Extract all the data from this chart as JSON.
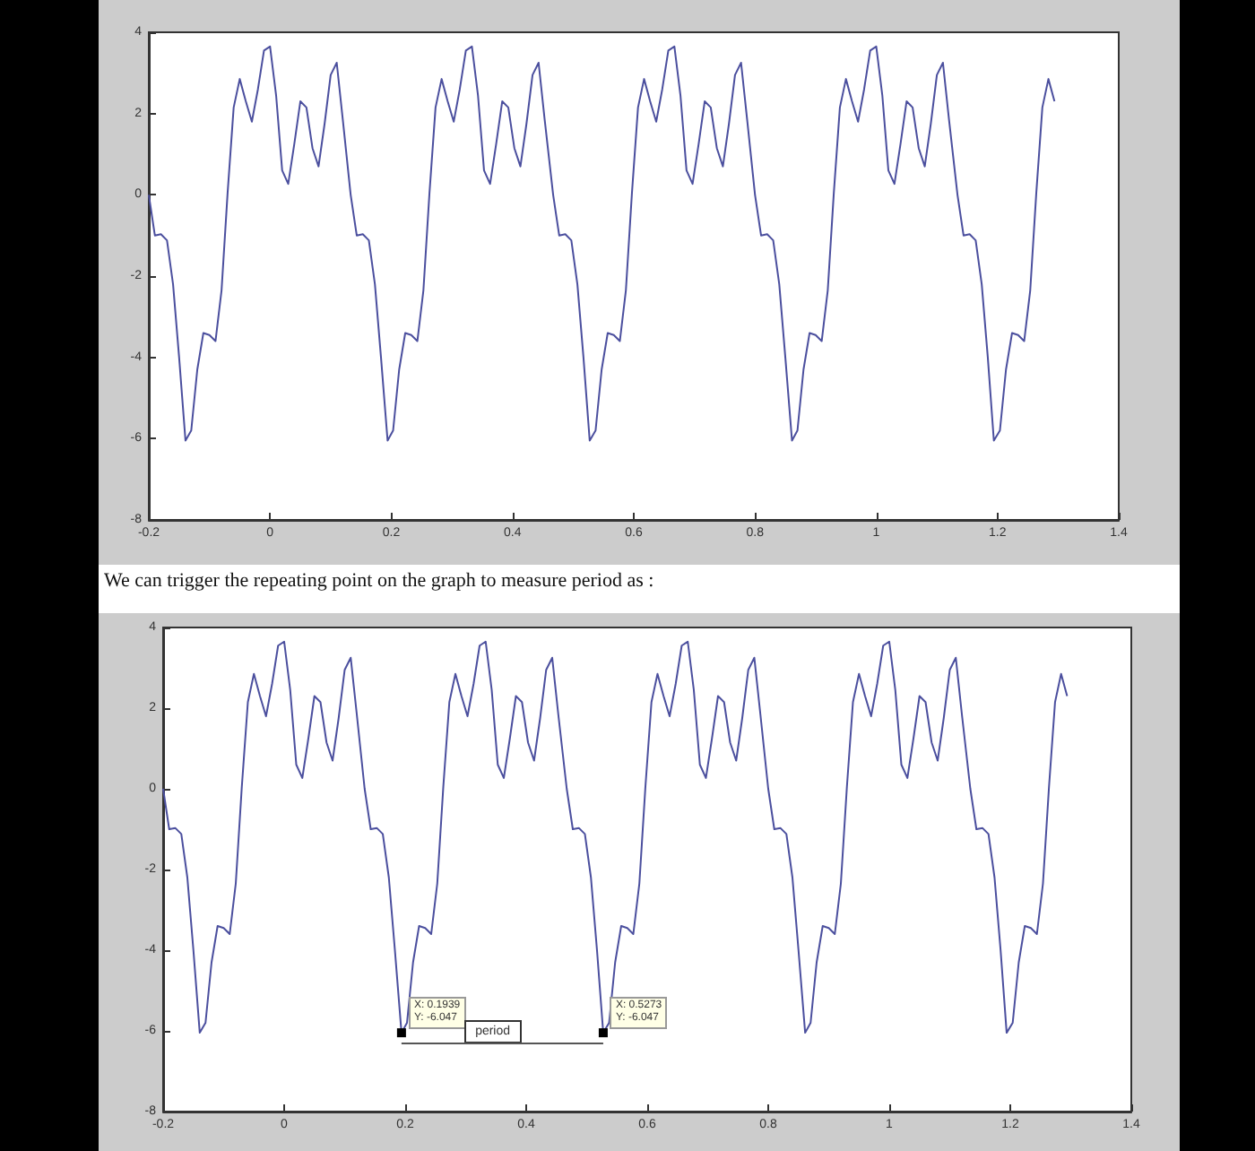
{
  "chart_data": [
    {
      "type": "line",
      "marker": "none",
      "line_style": "solid",
      "grid": false,
      "xlim": [
        -0.2,
        1.4
      ],
      "xticks": [
        -0.2,
        0,
        0.2,
        0.4,
        0.6,
        0.8,
        1,
        1.2,
        1.4
      ],
      "ylim": [
        -8,
        4
      ],
      "yticks": [
        -8,
        -6,
        -4,
        -2,
        0,
        2,
        4
      ],
      "series": [
        {
          "color": "#4b4f9e",
          "x": [
            -0.2,
            -0.19,
            -0.18,
            -0.17,
            -0.16,
            -0.15,
            -0.1395,
            -0.13,
            -0.12,
            -0.11,
            -0.1,
            -0.09,
            -0.08,
            -0.07,
            -0.06,
            -0.05,
            -0.04,
            -0.03,
            -0.02,
            -0.01,
            0,
            0.01,
            0.02,
            0.03,
            0.04,
            0.05,
            0.06,
            0.07,
            0.08,
            0.09,
            0.1,
            0.11,
            0.12,
            0.133,
            0.143,
            0.153,
            0.163,
            0.173,
            0.183,
            0.1939,
            0.203,
            0.213,
            0.223,
            0.233,
            0.243,
            0.253,
            0.263,
            0.273,
            0.283,
            0.293,
            0.303,
            0.313,
            0.323,
            0.333,
            0.343,
            0.353,
            0.363,
            0.373,
            0.383,
            0.393,
            0.403,
            0.413,
            0.423,
            0.433,
            0.443,
            0.453,
            0.467,
            0.477,
            0.487,
            0.497,
            0.507,
            0.517,
            0.5273,
            0.537,
            0.547,
            0.557,
            0.567,
            0.577,
            0.587,
            0.597,
            0.607,
            0.617,
            0.627,
            0.637,
            0.647,
            0.657,
            0.667,
            0.677,
            0.687,
            0.697,
            0.707,
            0.717,
            0.727,
            0.737,
            0.747,
            0.757,
            0.767,
            0.777,
            0.787,
            0.8,
            0.81,
            0.82,
            0.83,
            0.84,
            0.85,
            0.861,
            0.87,
            0.88,
            0.89,
            0.9,
            0.91,
            0.92,
            0.93,
            0.94,
            0.95,
            0.96,
            0.97,
            0.98,
            0.99,
            1.0,
            1.01,
            1.02,
            1.03,
            1.04,
            1.05,
            1.06,
            1.07,
            1.08,
            1.09,
            1.1,
            1.11,
            1.12,
            1.134,
            1.144,
            1.154,
            1.164,
            1.174,
            1.184,
            1.194,
            1.204,
            1.214,
            1.224,
            1.234,
            1.244,
            1.254,
            1.264,
            1.274,
            1.284,
            1.294
          ],
          "values": [
            0,
            -1.0,
            -0.97,
            -1.12,
            -2.2,
            -4.0,
            -6.047,
            -5.8,
            -4.3,
            -3.4,
            -3.45,
            -3.6,
            -2.35,
            0.05,
            2.15,
            2.85,
            2.3,
            1.8,
            2.6,
            3.55,
            3.65,
            2.45,
            0.6,
            0.27,
            1.25,
            2.3,
            2.15,
            1.15,
            0.7,
            1.75,
            2.95,
            3.25,
            1.85,
            0,
            -1.0,
            -0.97,
            -1.12,
            -2.2,
            -4.0,
            -6.047,
            -5.8,
            -4.3,
            -3.4,
            -3.45,
            -3.6,
            -2.35,
            0.05,
            2.15,
            2.85,
            2.3,
            1.8,
            2.6,
            3.55,
            3.65,
            2.45,
            0.6,
            0.27,
            1.25,
            2.3,
            2.15,
            1.15,
            0.7,
            1.75,
            2.95,
            3.25,
            1.85,
            0,
            -1.0,
            -0.97,
            -1.12,
            -2.2,
            -4.0,
            -6.047,
            -5.8,
            -4.3,
            -3.4,
            -3.45,
            -3.6,
            -2.35,
            0.05,
            2.15,
            2.85,
            2.3,
            1.8,
            2.6,
            3.55,
            3.65,
            2.45,
            0.6,
            0.27,
            1.25,
            2.3,
            2.15,
            1.15,
            0.7,
            1.75,
            2.95,
            3.25,
            1.85,
            0,
            -1.0,
            -0.97,
            -1.12,
            -2.2,
            -4.0,
            -6.047,
            -5.8,
            -4.3,
            -3.4,
            -3.45,
            -3.6,
            -2.35,
            0.05,
            2.15,
            2.85,
            2.3,
            1.8,
            2.6,
            3.55,
            3.65,
            2.45,
            0.6,
            0.27,
            1.25,
            2.3,
            2.15,
            1.15,
            0.7,
            1.75,
            2.95,
            3.25,
            1.85,
            0,
            -1.0,
            -0.97,
            -1.12,
            -2.2,
            -4.0,
            -6.047,
            -5.8,
            -4.3,
            -3.4,
            -3.45,
            -3.6,
            -2.35,
            0.05,
            2.15,
            2.85,
            2.3
          ]
        }
      ]
    },
    {
      "type": "line",
      "marker": "none",
      "line_style": "solid",
      "grid": false,
      "title": "We can trigger the repeating point on the graph to measure period as :",
      "xlim": [
        -0.2,
        1.4
      ],
      "xticks": [
        -0.2,
        0,
        0.2,
        0.4,
        0.6,
        0.8,
        1,
        1.2,
        1.4
      ],
      "ylim": [
        -8,
        4
      ],
      "yticks": [
        -8,
        -6,
        -4,
        -2,
        0,
        2,
        4
      ],
      "annotations": [
        {
          "text": "X: 0.1939\nY: -6.047",
          "x": 0.1939,
          "y": -6.047
        },
        {
          "text": "X: 0.5273\nY: -6.047",
          "x": 0.5273,
          "y": -6.047
        },
        "period"
      ],
      "series": [
        {
          "color": "#4b4f9e",
          "x": [
            -0.2,
            -0.19,
            -0.18,
            -0.17,
            -0.16,
            -0.15,
            -0.1395,
            -0.13,
            -0.12,
            -0.11,
            -0.1,
            -0.09,
            -0.08,
            -0.07,
            -0.06,
            -0.05,
            -0.04,
            -0.03,
            -0.02,
            -0.01,
            0,
            0.01,
            0.02,
            0.03,
            0.04,
            0.05,
            0.06,
            0.07,
            0.08,
            0.09,
            0.1,
            0.11,
            0.12,
            0.133,
            0.143,
            0.153,
            0.163,
            0.173,
            0.183,
            0.1939,
            0.203,
            0.213,
            0.223,
            0.233,
            0.243,
            0.253,
            0.263,
            0.273,
            0.283,
            0.293,
            0.303,
            0.313,
            0.323,
            0.333,
            0.343,
            0.353,
            0.363,
            0.373,
            0.383,
            0.393,
            0.403,
            0.413,
            0.423,
            0.433,
            0.443,
            0.453,
            0.467,
            0.477,
            0.487,
            0.497,
            0.507,
            0.517,
            0.5273,
            0.537,
            0.547,
            0.557,
            0.567,
            0.577,
            0.587,
            0.597,
            0.607,
            0.617,
            0.627,
            0.637,
            0.647,
            0.657,
            0.667,
            0.677,
            0.687,
            0.697,
            0.707,
            0.717,
            0.727,
            0.737,
            0.747,
            0.757,
            0.767,
            0.777,
            0.787,
            0.8,
            0.81,
            0.82,
            0.83,
            0.84,
            0.85,
            0.861,
            0.87,
            0.88,
            0.89,
            0.9,
            0.91,
            0.92,
            0.93,
            0.94,
            0.95,
            0.96,
            0.97,
            0.98,
            0.99,
            1.0,
            1.01,
            1.02,
            1.03,
            1.04,
            1.05,
            1.06,
            1.07,
            1.08,
            1.09,
            1.1,
            1.11,
            1.12,
            1.134,
            1.144,
            1.154,
            1.164,
            1.174,
            1.184,
            1.194,
            1.204,
            1.214,
            1.224,
            1.234,
            1.244,
            1.254,
            1.264,
            1.274,
            1.284,
            1.294
          ],
          "values": [
            0,
            -1.0,
            -0.97,
            -1.12,
            -2.2,
            -4.0,
            -6.047,
            -5.8,
            -4.3,
            -3.4,
            -3.45,
            -3.6,
            -2.35,
            0.05,
            2.15,
            2.85,
            2.3,
            1.8,
            2.6,
            3.55,
            3.65,
            2.45,
            0.6,
            0.27,
            1.25,
            2.3,
            2.15,
            1.15,
            0.7,
            1.75,
            2.95,
            3.25,
            1.85,
            0,
            -1.0,
            -0.97,
            -1.12,
            -2.2,
            -4.0,
            -6.047,
            -5.8,
            -4.3,
            -3.4,
            -3.45,
            -3.6,
            -2.35,
            0.05,
            2.15,
            2.85,
            2.3,
            1.8,
            2.6,
            3.55,
            3.65,
            2.45,
            0.6,
            0.27,
            1.25,
            2.3,
            2.15,
            1.15,
            0.7,
            1.75,
            2.95,
            3.25,
            1.85,
            0,
            -1.0,
            -0.97,
            -1.12,
            -2.2,
            -4.0,
            -6.047,
            -5.8,
            -4.3,
            -3.4,
            -3.45,
            -3.6,
            -2.35,
            0.05,
            2.15,
            2.85,
            2.3,
            1.8,
            2.6,
            3.55,
            3.65,
            2.45,
            0.6,
            0.27,
            1.25,
            2.3,
            2.15,
            1.15,
            0.7,
            1.75,
            2.95,
            3.25,
            1.85,
            0,
            -1.0,
            -0.97,
            -1.12,
            -2.2,
            -4.0,
            -6.047,
            -5.8,
            -4.3,
            -3.4,
            -3.45,
            -3.6,
            -2.35,
            0.05,
            2.15,
            2.85,
            2.3,
            1.8,
            2.6,
            3.55,
            3.65,
            2.45,
            0.6,
            0.27,
            1.25,
            2.3,
            2.15,
            1.15,
            0.7,
            1.75,
            2.95,
            3.25,
            1.85,
            0,
            -1.0,
            -0.97,
            -1.12,
            -2.2,
            -4.0,
            -6.047,
            -5.8,
            -4.3,
            -3.4,
            -3.45,
            -3.6,
            -2.35,
            0.05,
            2.15,
            2.85,
            2.3
          ]
        }
      ]
    }
  ]
}
